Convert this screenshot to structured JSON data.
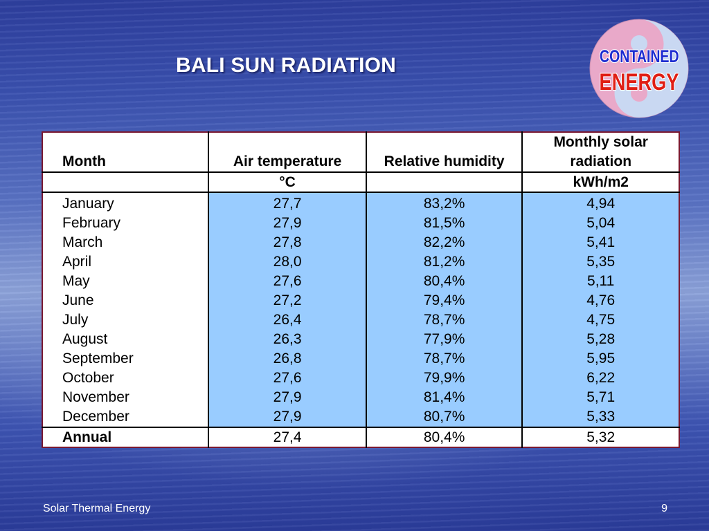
{
  "slide": {
    "title": "BALI SUN RADIATION",
    "footer_text": "Solar Thermal Energy",
    "page_number": "9"
  },
  "logo": {
    "line1": "CONTAINED",
    "line2": "ENERGY"
  },
  "table": {
    "headers": {
      "month": "Month",
      "air_temperature": "Air temperature",
      "relative_humidity": "Relative humidity",
      "solar_radiation_line1": "Monthly solar",
      "solar_radiation_line2": "radiation"
    },
    "units": {
      "month": "",
      "air_temperature": "°C",
      "relative_humidity": "",
      "solar_radiation": "kWh/m2"
    },
    "rows": [
      {
        "month": "January",
        "temp": "27,7",
        "humidity": "83,2%",
        "radiation": "4,94"
      },
      {
        "month": "February",
        "temp": "27,9",
        "humidity": "81,5%",
        "radiation": "5,04"
      },
      {
        "month": "March",
        "temp": "27,8",
        "humidity": "82,2%",
        "radiation": "5,41"
      },
      {
        "month": "April",
        "temp": "28,0",
        "humidity": "81,2%",
        "radiation": "5,35"
      },
      {
        "month": "May",
        "temp": "27,6",
        "humidity": "80,4%",
        "radiation": "5,11"
      },
      {
        "month": "June",
        "temp": "27,2",
        "humidity": "79,4%",
        "radiation": "4,76"
      },
      {
        "month": "July",
        "temp": "26,4",
        "humidity": "78,7%",
        "radiation": "4,75"
      },
      {
        "month": "August",
        "temp": "26,3",
        "humidity": "77,9%",
        "radiation": "5,28"
      },
      {
        "month": "September",
        "temp": "26,8",
        "humidity": "78,7%",
        "radiation": "5,95"
      },
      {
        "month": "October",
        "temp": "27,6",
        "humidity": "79,9%",
        "radiation": "6,22"
      },
      {
        "month": "November",
        "temp": "27,9",
        "humidity": "81,4%",
        "radiation": "5,71"
      },
      {
        "month": "December",
        "temp": "27,9",
        "humidity": "80,7%",
        "radiation": "5,33"
      }
    ],
    "annual": {
      "month": "Annual",
      "temp": "27,4",
      "humidity": "80,4%",
      "radiation": "5,32"
    }
  },
  "colors": {
    "value_cell_bg": "#99ccff",
    "table_border": "#7a1830",
    "logo_blue": "#1c2bd0",
    "logo_red": "#e01e14"
  }
}
